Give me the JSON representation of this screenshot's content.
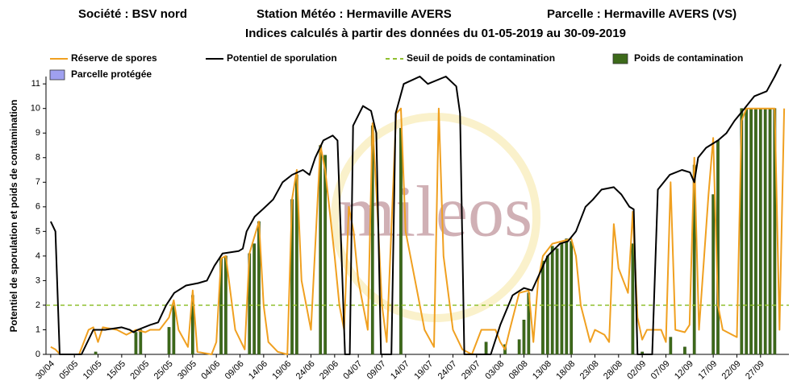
{
  "header": {
    "societe": "Société : BSV nord",
    "station": "Station Météo : Hermaville AVERS",
    "parcelle": "Parcelle : Hermaville AVERS (VS)"
  },
  "chart_data": {
    "type": "line",
    "title": "Indices calculés à partir des données du 01-05-2019 au 30-09-2019",
    "y_label": "Potentiel de sporulation et poids de contamination",
    "watermark": "mileos",
    "xlim": [
      -1,
      156
    ],
    "ylim": [
      0,
      11.3
    ],
    "yticks": [
      0,
      1,
      2,
      3,
      4,
      5,
      6,
      7,
      8,
      9,
      10,
      11
    ],
    "xticks": [
      {
        "value": 0,
        "label": "30/04"
      },
      {
        "value": 5,
        "label": "05/05"
      },
      {
        "value": 10,
        "label": "10/05"
      },
      {
        "value": 15,
        "label": "15/05"
      },
      {
        "value": 20,
        "label": "20/05"
      },
      {
        "value": 25,
        "label": "25/05"
      },
      {
        "value": 30,
        "label": "30/05"
      },
      {
        "value": 35,
        "label": "04/06"
      },
      {
        "value": 40,
        "label": "09/06"
      },
      {
        "value": 45,
        "label": "14/06"
      },
      {
        "value": 50,
        "label": "19/06"
      },
      {
        "value": 55,
        "label": "24/06"
      },
      {
        "value": 60,
        "label": "29/06"
      },
      {
        "value": 65,
        "label": "04/07"
      },
      {
        "value": 70,
        "label": "09/07"
      },
      {
        "value": 75,
        "label": "14/07"
      },
      {
        "value": 80,
        "label": "19/07"
      },
      {
        "value": 85,
        "label": "24/07"
      },
      {
        "value": 90,
        "label": "29/07"
      },
      {
        "value": 95,
        "label": "03/08"
      },
      {
        "value": 100,
        "label": "08/08"
      },
      {
        "value": 105,
        "label": "13/08"
      },
      {
        "value": 110,
        "label": "18/08"
      },
      {
        "value": 115,
        "label": "23/08"
      },
      {
        "value": 120,
        "label": "28/08"
      },
      {
        "value": 125,
        "label": "02/09"
      },
      {
        "value": 130,
        "label": "07/09"
      },
      {
        "value": 135,
        "label": "12/09"
      },
      {
        "value": 140,
        "label": "17/09"
      },
      {
        "value": 145,
        "label": "22/09"
      },
      {
        "value": 150,
        "label": "27/09"
      }
    ],
    "series": [
      {
        "name": "Réserve de spores",
        "type": "line",
        "color": "#f0a020",
        "x": [
          0,
          1,
          2,
          6,
          8,
          9,
          10,
          11,
          14,
          16,
          18,
          20,
          21,
          23,
          25,
          26,
          27,
          29,
          30,
          31,
          34,
          35,
          36,
          37,
          39,
          41,
          42,
          44,
          45,
          46,
          48,
          50,
          51,
          52,
          53,
          55,
          57,
          58,
          60,
          61,
          62,
          63,
          64,
          65,
          66,
          67,
          68,
          69,
          70,
          71,
          73,
          74,
          75,
          77,
          79,
          81,
          82,
          83,
          85,
          87,
          89,
          91,
          94,
          95,
          96,
          97,
          99,
          101,
          102,
          103,
          104,
          106,
          108,
          110,
          111,
          112,
          114,
          115,
          117,
          118,
          119,
          120,
          122,
          123,
          124,
          125,
          126,
          129,
          130,
          131,
          132,
          134,
          135,
          136,
          137,
          139,
          140,
          141,
          142,
          144,
          145,
          146,
          147,
          153,
          154,
          155
        ],
        "values": [
          0.3,
          0.2,
          0,
          0,
          1.0,
          1.1,
          0.5,
          1.1,
          1.0,
          0.8,
          1.0,
          0.9,
          1.0,
          1.0,
          1.5,
          2.2,
          1.0,
          0.3,
          2.6,
          0.1,
          0,
          0.5,
          3.9,
          4.0,
          1.0,
          0.2,
          4.1,
          5.4,
          2.0,
          0.5,
          0.1,
          0,
          6.3,
          7.5,
          3.0,
          1.0,
          8.5,
          7.5,
          4.0,
          2.0,
          1.0,
          6.0,
          5.0,
          3.0,
          2.0,
          1.0,
          9.4,
          6.0,
          2.0,
          0.5,
          9.8,
          10.0,
          5.0,
          3.0,
          1.0,
          0.3,
          10.0,
          4.0,
          1.0,
          0.2,
          0,
          1.0,
          1.0,
          0.5,
          0.2,
          1.0,
          2.5,
          2.6,
          0.5,
          3.0,
          4.0,
          4.5,
          4.6,
          4.7,
          4.0,
          2.0,
          0.5,
          1.0,
          0.8,
          0.5,
          5.3,
          3.5,
          2.5,
          5.8,
          1.5,
          0.6,
          1.0,
          1.0,
          0.5,
          7.0,
          1.0,
          0.9,
          1.2,
          8.0,
          1.0,
          6.5,
          8.8,
          2.0,
          1.0,
          0.8,
          0.7,
          9.5,
          10.0,
          10.0,
          1.0,
          10.0
        ]
      },
      {
        "name": "Potentiel de sporulation",
        "type": "line",
        "color": "#000000",
        "x": [
          0,
          1,
          1.9,
          6.5,
          9,
          11.5,
          15,
          16.7,
          17.5,
          18.4,
          21,
          22.7,
          24.4,
          26.1,
          28.6,
          31.2,
          33,
          34.6,
          36.3,
          39.7,
          40.6,
          41.4,
          43.1,
          44.8,
          47,
          49,
          51,
          53.3,
          54.7,
          55.9,
          57.6,
          59.6,
          60.6,
          62.2,
          63.2,
          63.9,
          66,
          67.7,
          68.8,
          69.8,
          72,
          72.9,
          74.6,
          78,
          79.7,
          83.5,
          85.7,
          86.5,
          87.4,
          93,
          95,
          97.6,
          100,
          101.7,
          105,
          107.6,
          109.3,
          111,
          113,
          114.6,
          116.4,
          119,
          120.6,
          122.3,
          123.2,
          124,
          127.1,
          128.3,
          130.8,
          133.4,
          135.1,
          136,
          136.8,
          138.5,
          141,
          142.8,
          144.5,
          146.2,
          148.7,
          151.3,
          153,
          154.3
        ],
        "values": [
          5.4,
          5.0,
          0,
          0,
          1.0,
          1.0,
          1.1,
          1.0,
          0.9,
          1.0,
          1.2,
          1.3,
          2.0,
          2.5,
          2.8,
          2.9,
          3.0,
          3.6,
          4.1,
          4.2,
          4.3,
          5.0,
          5.6,
          5.9,
          6.3,
          7.0,
          7.3,
          7.5,
          7.3,
          8.0,
          8.7,
          8.9,
          8.7,
          0,
          0,
          9.3,
          10.1,
          9.9,
          9.0,
          0,
          0,
          9.8,
          11.0,
          11.3,
          11.0,
          11.3,
          10.9,
          9.8,
          0,
          0,
          1.2,
          2.4,
          2.7,
          2.6,
          4.0,
          4.5,
          4.6,
          5.0,
          6.0,
          6.3,
          6.7,
          6.8,
          6.5,
          6.0,
          5.9,
          0,
          0,
          6.7,
          7.3,
          7.5,
          7.4,
          7.0,
          8.0,
          8.4,
          8.7,
          9.0,
          9.5,
          9.9,
          10.5,
          10.7,
          11.3,
          11.8
        ]
      },
      {
        "name": "Seuil de poids de contamination",
        "type": "hline",
        "color": "#90c030",
        "values": [
          2
        ]
      },
      {
        "name": "Poids de contamination",
        "type": "bar",
        "color": "#3d6a1a",
        "x": [
          9.5,
          18,
          19,
          25,
          26,
          30,
          36,
          37,
          42,
          43,
          44,
          51,
          52,
          57,
          58,
          68,
          74,
          92,
          96,
          99,
          100,
          101,
          104,
          105,
          106,
          107,
          108,
          109,
          110,
          123,
          125,
          131,
          134,
          136,
          140,
          141,
          146,
          147,
          148,
          149,
          150,
          151,
          152,
          153
        ],
        "values": [
          0.1,
          0.9,
          1.0,
          1.1,
          2.0,
          2.4,
          3.9,
          4.0,
          4.1,
          4.5,
          5.4,
          6.3,
          7.3,
          8.5,
          8.1,
          9.3,
          9.2,
          0.5,
          0.4,
          0.6,
          1.4,
          2.5,
          3.8,
          4.0,
          4.4,
          4.3,
          4.5,
          4.7,
          4.6,
          4.5,
          0.1,
          0.7,
          0.3,
          7.7,
          6.5,
          8.7,
          10,
          10,
          10,
          10,
          10,
          10,
          10,
          10
        ]
      },
      {
        "name": "Parcelle protégée",
        "type": "bar",
        "color": "#9fa0f0",
        "x": [],
        "values": []
      }
    ]
  }
}
